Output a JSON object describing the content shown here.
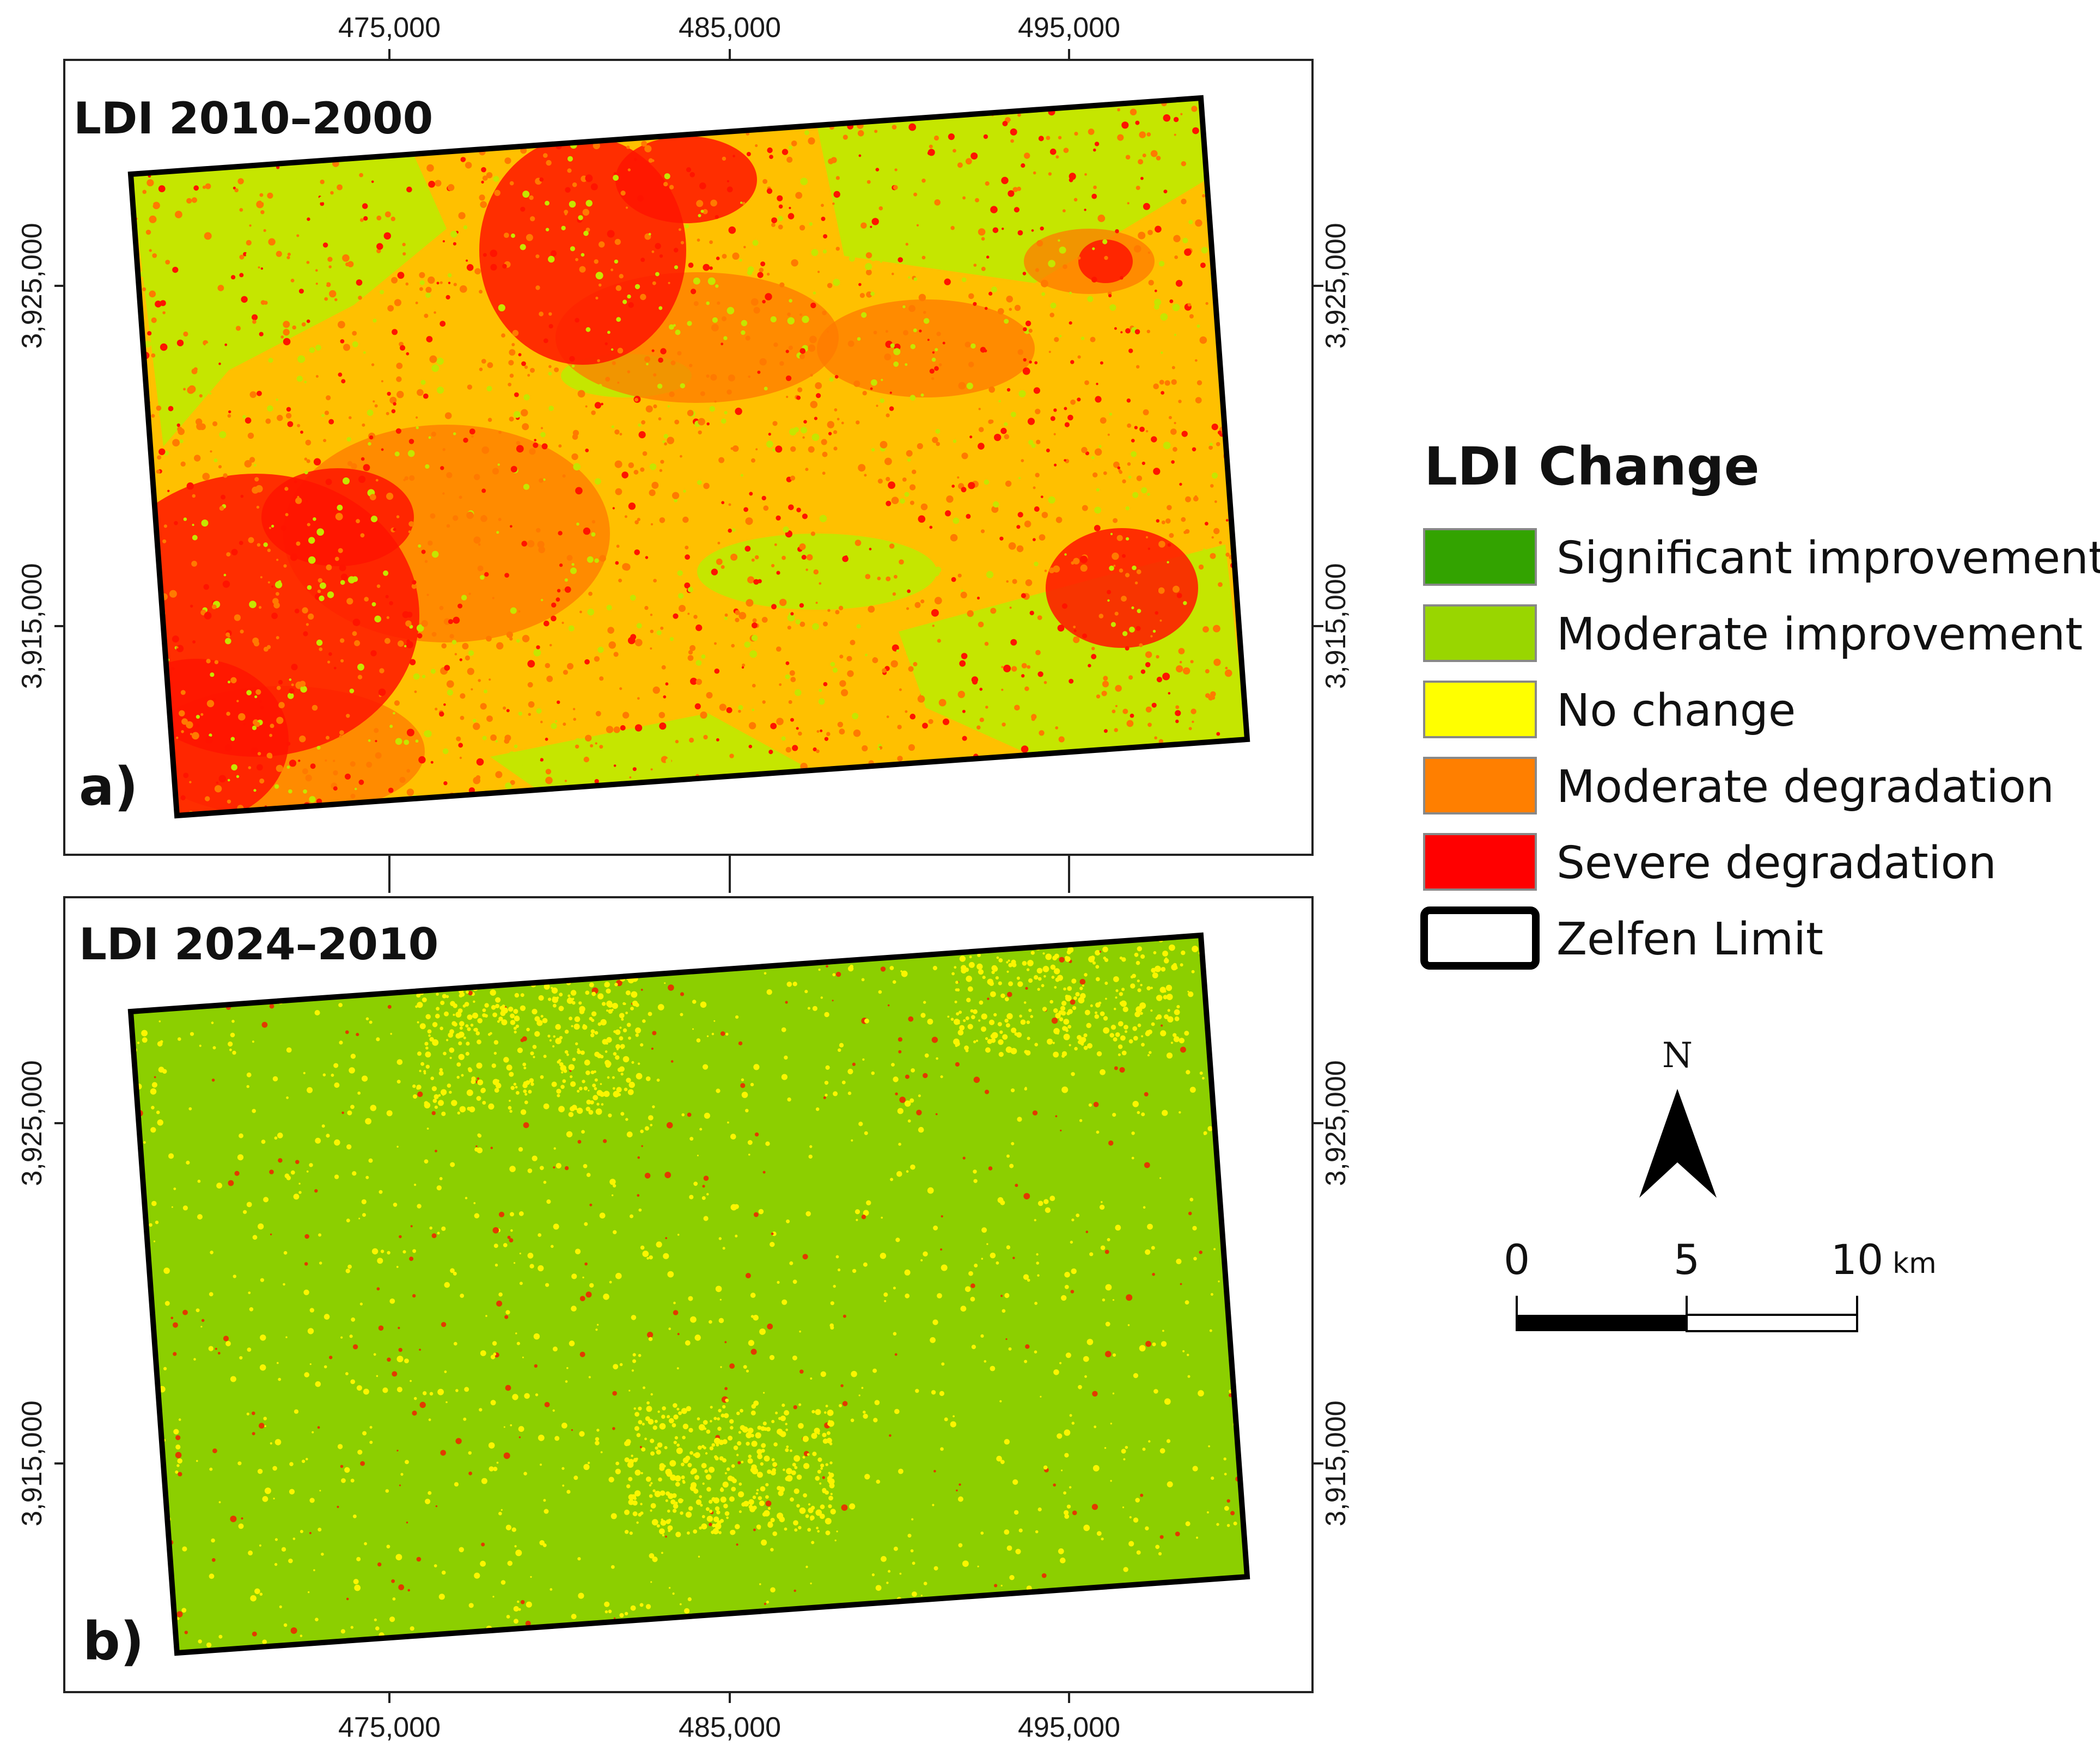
{
  "figure": {
    "panel_a": {
      "title": "LDI 2010–2000",
      "label": "a)"
    },
    "panel_b": {
      "title": "LDI 2024–2010",
      "label": "b)"
    },
    "x_ticks": [
      "475,000",
      "485,000",
      "495,000"
    ],
    "y_ticks": [
      "3,925,000",
      "3,915,000"
    ]
  },
  "legend": {
    "title": "LDI Change",
    "items": [
      {
        "label": "Significant improvement",
        "color": "#33a300"
      },
      {
        "label": "Moderate improvement",
        "color": "#99d600"
      },
      {
        "label": "No change",
        "color": "#ffff00"
      },
      {
        "label": "Moderate degradation",
        "color": "#ff7f00"
      },
      {
        "label": "Severe degradation",
        "color": "#ff0000"
      },
      {
        "label": "Zelfen Limit",
        "color": "#ffffff"
      }
    ]
  },
  "north_arrow": {
    "label": "N"
  },
  "scale_bar": {
    "labels": [
      "0",
      "5",
      "10"
    ],
    "unit": "km"
  },
  "colors": {
    "panel_a_base": "#ffc000",
    "panel_a_green": "#c5e600",
    "panel_a_red": "#ff1400",
    "panel_a_orange": "#ff7a00",
    "panel_b_base": "#8ccf00",
    "panel_b_yellow": "#fbf500",
    "panel_b_red": "#e23a00"
  }
}
